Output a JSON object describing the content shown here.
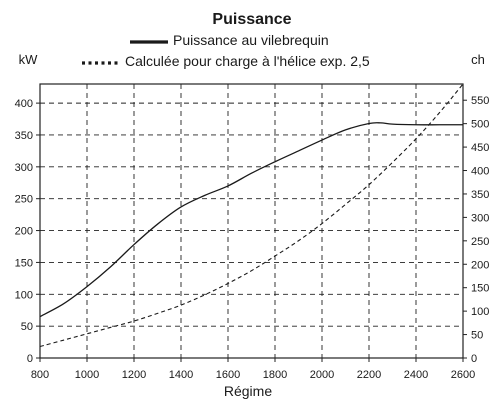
{
  "chart_data": {
    "type": "line",
    "title": "Puissance",
    "xlabel": "Régime",
    "ylabel_left": "kW",
    "ylabel_right": "ch",
    "xlim": [
      800,
      2600
    ],
    "ylim_left": [
      0,
      430
    ],
    "ylim_right": [
      0,
      584.6
    ],
    "x_ticks": [
      800,
      1000,
      1200,
      1400,
      1600,
      1800,
      2000,
      2200,
      2400,
      2600
    ],
    "y_ticks_left": [
      0,
      50,
      100,
      150,
      200,
      250,
      300,
      350,
      400
    ],
    "y_ticks_right": [
      0,
      50,
      100,
      150,
      200,
      250,
      300,
      350,
      400,
      450,
      500,
      550
    ],
    "grid": true,
    "legend_position": "top",
    "series": [
      {
        "name": "Puissance au vilebrequin",
        "style": "solid",
        "color": "#1a1a1a",
        "x": [
          800,
          900,
          1000,
          1100,
          1200,
          1300,
          1400,
          1500,
          1600,
          1700,
          1800,
          1900,
          2000,
          2100,
          2200,
          2250,
          2300,
          2400,
          2500,
          2600
        ],
        "y": [
          65,
          85,
          112,
          143,
          178,
          210,
          237,
          255,
          270,
          290,
          308,
          325,
          342,
          358,
          368,
          369,
          367,
          366,
          366,
          366
        ]
      },
      {
        "name": "Calculée pour charge à l'hélice exp. 2,5",
        "style": "dotted",
        "color": "#1a1a1a",
        "x": [
          800,
          900,
          1000,
          1100,
          1200,
          1300,
          1400,
          1500,
          1600,
          1700,
          1800,
          1900,
          2000,
          2100,
          2200,
          2300,
          2400,
          2500,
          2600
        ],
        "y": [
          18,
          28,
          38,
          48,
          58,
          70,
          83,
          99,
          117,
          137,
          160,
          184,
          211,
          241,
          272,
          307,
          344,
          385,
          430
        ]
      }
    ]
  }
}
